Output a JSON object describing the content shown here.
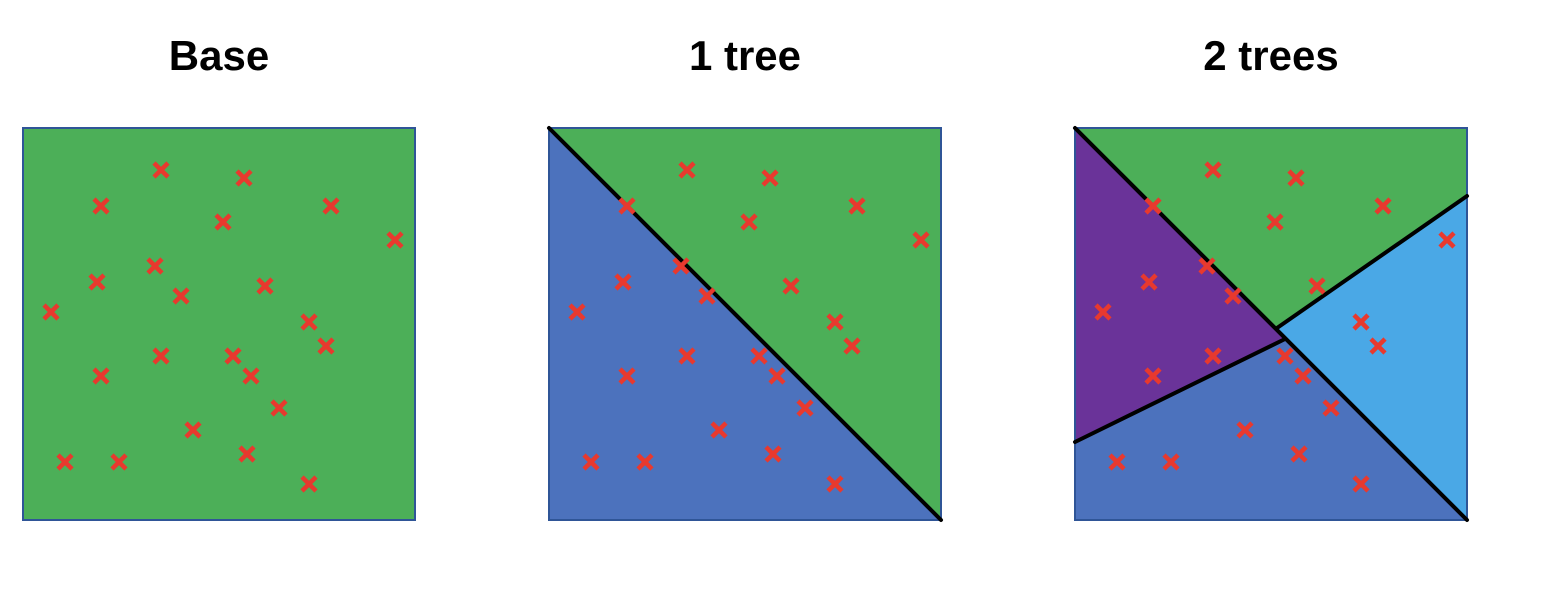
{
  "titles": {
    "base": "Base",
    "one_tree": "1 tree",
    "two_trees": "2 trees"
  },
  "colors": {
    "green": "#4caf58",
    "blue": "#4c72bd",
    "purple": "#6a3399",
    "light_blue": "#4aa8e6",
    "border": "#2f5597",
    "split_line": "#000000",
    "marker": "#e8392e"
  },
  "marker_icon": "x-mark",
  "panels": [
    {
      "name": "base",
      "title_key": "base",
      "regions": [
        "green"
      ],
      "split_count": 0
    },
    {
      "name": "one-tree",
      "title_key": "one_tree",
      "regions": [
        "green",
        "blue"
      ],
      "split_count": 1
    },
    {
      "name": "two-trees",
      "title_key": "two_trees",
      "regions": [
        "green",
        "purple",
        "light_blue",
        "blue"
      ],
      "split_count": 3
    }
  ]
}
